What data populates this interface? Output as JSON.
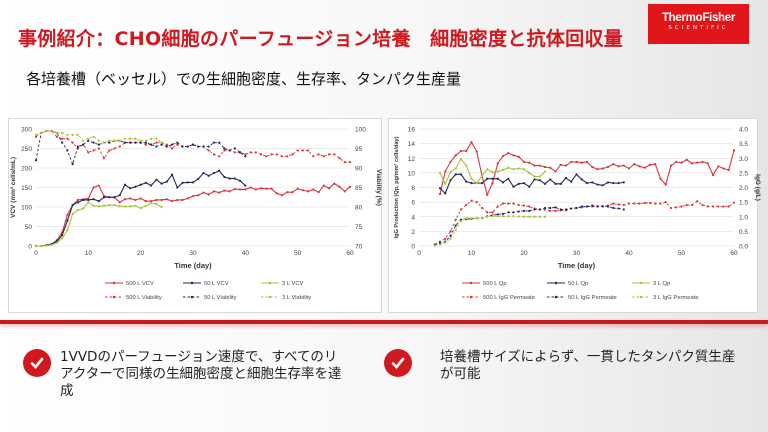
{
  "header": {
    "title": "事例紹介：CHO細胞のパーフュージョン培養　細胞密度と抗体回収量",
    "subtitle": "各培養槽（ベッセル）での生細胞密度、生存率、タンパク生産量"
  },
  "logo": {
    "line1": "ThermoFisher",
    "line2": "SCIENTIFIC",
    "color": "#e0161b"
  },
  "bullets": [
    {
      "icon": "check-circle-icon",
      "text": "1VVDのパーフュージョン速度で、すべてのリアクターで同様の生細胞密度と細胞生存率を達成"
    },
    {
      "icon": "check-circle-icon",
      "text": "培養槽サイズによらず、一貫したタンパク質生産が可能"
    }
  ],
  "colors": {
    "accent": "#d0191f",
    "red": "#d9343b",
    "navy": "#1f2a5a",
    "green": "#a9c43a"
  },
  "chart_data": [
    {
      "type": "line",
      "xlabel": "Time (day)",
      "ylabel": "VCV (mm³ cells/mL)",
      "y2label": "Viability (%)",
      "xlim": [
        0,
        60
      ],
      "ylim": [
        0,
        300
      ],
      "y2lim": [
        70,
        100
      ],
      "xticks": [
        0,
        10,
        20,
        30,
        40,
        50,
        60
      ],
      "yticks": [
        0,
        50,
        100,
        150,
        200,
        250,
        300
      ],
      "y2ticks": [
        70,
        75,
        80,
        85,
        90,
        95,
        100
      ],
      "grid": true,
      "legend": "bottom",
      "series": [
        {
          "name": "500 L VCV",
          "color": "#d9343b",
          "dash": false,
          "axis": "y",
          "x0": 0,
          "y": [
            0,
            0,
            2,
            5,
            15,
            35,
            80,
            105,
            118,
            120,
            122,
            150,
            155,
            128,
            125,
            125,
            112,
            120,
            122,
            118,
            122,
            115,
            115,
            118,
            118,
            120,
            115,
            118,
            118,
            122,
            128,
            130,
            137,
            132,
            140,
            137,
            142,
            140,
            146,
            145,
            145,
            150,
            145,
            148,
            147,
            147,
            135,
            130,
            138,
            138,
            147,
            143,
            140,
            145,
            138,
            155,
            148,
            160,
            152,
            140,
            152
          ]
        },
        {
          "name": "50 L VCV",
          "color": "#1f2a5a",
          "dash": false,
          "axis": "y",
          "x0": 0,
          "y": [
            0,
            0,
            2,
            5,
            12,
            28,
            65,
            105,
            112,
            118,
            118,
            120,
            115,
            125,
            125,
            125,
            130,
            157,
            148,
            152,
            157,
            162,
            155,
            170,
            160,
            165,
            183,
            150,
            162,
            163,
            163,
            172,
            187,
            180,
            187,
            193,
            177,
            173,
            173,
            167,
            155
          ]
        },
        {
          "name": "3 L VCV",
          "color": "#a9c43a",
          "dash": false,
          "axis": "y",
          "x0": 0,
          "y": [
            0,
            0,
            1,
            3,
            8,
            20,
            40,
            82,
            92,
            96,
            112,
            103,
            102,
            103,
            105,
            105,
            102,
            101,
            102,
            103,
            97,
            103,
            110,
            108,
            100
          ]
        },
        {
          "name": "500 L Viability",
          "color": "#d9343b",
          "dash": true,
          "axis": "y2",
          "x0": 0,
          "y": [
            98,
            99,
            99.5,
            99.5,
            98,
            97.5,
            97.5,
            96.5,
            95,
            96,
            94,
            94.5,
            95,
            92.5,
            94.5,
            95,
            95.5,
            96.5,
            96.5,
            96.5,
            96.5,
            96,
            96,
            96.5,
            96.5,
            96,
            95,
            96,
            95.5,
            95.5,
            96,
            95.5,
            95.5,
            94.5,
            93.5,
            93,
            94.5,
            94.5,
            94,
            94,
            93.5,
            94,
            94,
            93.5,
            93,
            93.5,
            93.5,
            93,
            93,
            93.5,
            94.5,
            94.5,
            94.5,
            93,
            93.5,
            93,
            93.5,
            93.5,
            92.5,
            91.5,
            91.5
          ]
        },
        {
          "name": "50 L Viability",
          "color": "#1f2a5a",
          "dash": true,
          "axis": "y2",
          "x0": 0,
          "y": [
            92,
            99,
            99.5,
            99.5,
            99,
            96.5,
            94.5,
            91,
            95.5,
            96,
            97,
            96.5,
            96,
            96.5,
            96.5,
            97,
            97,
            96.5,
            96.5,
            96.5,
            96.5,
            96.5,
            96,
            95.5,
            96,
            95.5,
            96,
            96.5,
            95.5,
            95.5,
            96,
            95.5,
            95.5,
            95.5,
            96.5,
            96.5,
            95,
            94.5,
            95,
            94,
            93
          ]
        },
        {
          "name": "3 L Viability",
          "color": "#a9c43a",
          "dash": true,
          "axis": "y2",
          "x0": 0,
          "y": [
            98.5,
            99,
            99.5,
            99.5,
            99,
            99,
            98.5,
            98.5,
            98.5,
            97,
            97.5,
            98,
            97,
            96.5,
            97,
            97,
            97,
            97.5,
            97.5,
            97.5,
            97,
            97,
            97.5,
            97.5,
            96.5
          ]
        }
      ]
    },
    {
      "type": "line",
      "xlabel": "Time (day)",
      "ylabel": "IgG Production (Qp, pg/mm³ cells/day)",
      "y2label": "IgG (g/L)",
      "xlim": [
        0,
        60
      ],
      "ylim": [
        0,
        16
      ],
      "y2lim": [
        0,
        4
      ],
      "xticks": [
        0,
        10,
        20,
        30,
        40,
        50,
        60
      ],
      "yticks": [
        0,
        2,
        4,
        6,
        8,
        10,
        12,
        14,
        16
      ],
      "y2ticks": [
        "0.0",
        "0.5",
        "1.0",
        "1.5",
        "2.0",
        "2.5",
        "3.0",
        "3.5",
        "4.0"
      ],
      "grid": true,
      "legend": "bottom",
      "series": [
        {
          "name": "500 L Qp",
          "color": "#d9343b",
          "dash": false,
          "axis": "y",
          "x0": 4,
          "y": [
            7.1,
            10.2,
            11.5,
            12.4,
            13,
            13,
            14.2,
            12.9,
            9.6,
            7,
            8.6,
            11.3,
            12.3,
            12.7,
            12.4,
            12.2,
            11.5,
            11.4,
            11,
            11,
            10.8,
            10.7,
            10.2,
            11.1,
            11,
            11.5,
            11.5,
            11.4,
            11.5,
            10.8,
            10.5,
            10.6,
            10.8,
            11.2,
            10.9,
            11,
            10.6,
            11.2,
            10.9,
            10.7,
            11.1,
            11.2,
            9.2,
            8.4,
            11,
            11.5,
            11.4,
            11.8,
            11.3,
            11.4,
            11.5,
            11.3,
            9.7,
            10.9,
            10.6,
            10.4,
            13.1
          ]
        },
        {
          "name": "50 L Qp",
          "color": "#1f2a5a",
          "dash": false,
          "axis": "y",
          "x0": 4,
          "y": [
            7.9,
            7.2,
            9,
            9.8,
            9.8,
            8.8,
            8.6,
            8.6,
            8.6,
            9.2,
            9.2,
            9.2,
            8.7,
            9.2,
            8.1,
            8.5,
            8.6,
            8.1,
            9.1,
            9,
            8.5,
            9.1,
            8.5,
            8.5,
            9.3,
            8.8,
            9.8,
            9.1,
            8.6,
            8.7,
            8.4,
            8.3,
            8.7,
            8.6,
            8.6,
            8.7
          ]
        },
        {
          "name": "3 L Qp",
          "color": "#a9c43a",
          "dash": false,
          "axis": "y",
          "x0": 4,
          "y": [
            10,
            8.5,
            10.1,
            10.6,
            11.9,
            11,
            9.2,
            8.6,
            9.6,
            10.5,
            10.1,
            10.2,
            10.4,
            10.7,
            10.5,
            10.6,
            10.5,
            10,
            9.5,
            9.5,
            10.2
          ]
        },
        {
          "name": "500 L IgG Permeate",
          "color": "#d9343b",
          "dash": true,
          "axis": "y2",
          "x0": 3,
          "y": [
            0.05,
            0.15,
            0.25,
            0.5,
            0.9,
            1.25,
            1.4,
            1.55,
            1.5,
            1.3,
            1.15,
            1.15,
            1.35,
            1.45,
            1.45,
            1.45,
            1.4,
            1.38,
            1.35,
            1.28,
            1.25,
            1.25,
            1.2,
            1.2,
            1.22,
            1.22,
            1.28,
            1.3,
            1.32,
            1.35,
            1.35,
            1.35,
            1.35,
            1.38,
            1.45,
            1.42,
            1.4,
            1.45,
            1.45,
            1.45,
            1.47,
            1.47,
            1.45,
            1.45,
            1.5,
            1.3,
            1.32,
            1.35,
            1.4,
            1.4,
            1.53,
            1.4,
            1.35,
            1.35,
            1.35,
            1.35,
            1.35,
            1.48
          ]
        },
        {
          "name": "50 L IgG Permeate",
          "color": "#1f2a5a",
          "dash": true,
          "axis": "y2",
          "x0": 3,
          "y": [
            0.05,
            0.1,
            0.15,
            0.35,
            0.7,
            0.9,
            0.92,
            0.93,
            0.95,
            0.95,
            1.02,
            1.05,
            1.08,
            1.1,
            1.15,
            1.15,
            1.18,
            1.2,
            1.2,
            1.25,
            1.25,
            1.3,
            1.3,
            1.32,
            1.25,
            1.25,
            1.28,
            1.3,
            1.35,
            1.35,
            1.38,
            1.36,
            1.36,
            1.35,
            1.3,
            1.28,
            1.25
          ]
        },
        {
          "name": "3 L IgG Permeate",
          "color": "#a9c43a",
          "dash": true,
          "axis": "y2",
          "x0": 3,
          "y": [
            0.02,
            0.05,
            0.12,
            0.25,
            0.55,
            0.85,
            0.95,
            0.95,
            0.95,
            0.95,
            1,
            1.02,
            1.02,
            1.02,
            1.02,
            1.02,
            1.01,
            1,
            1,
            1,
            1,
            1
          ]
        }
      ]
    }
  ]
}
